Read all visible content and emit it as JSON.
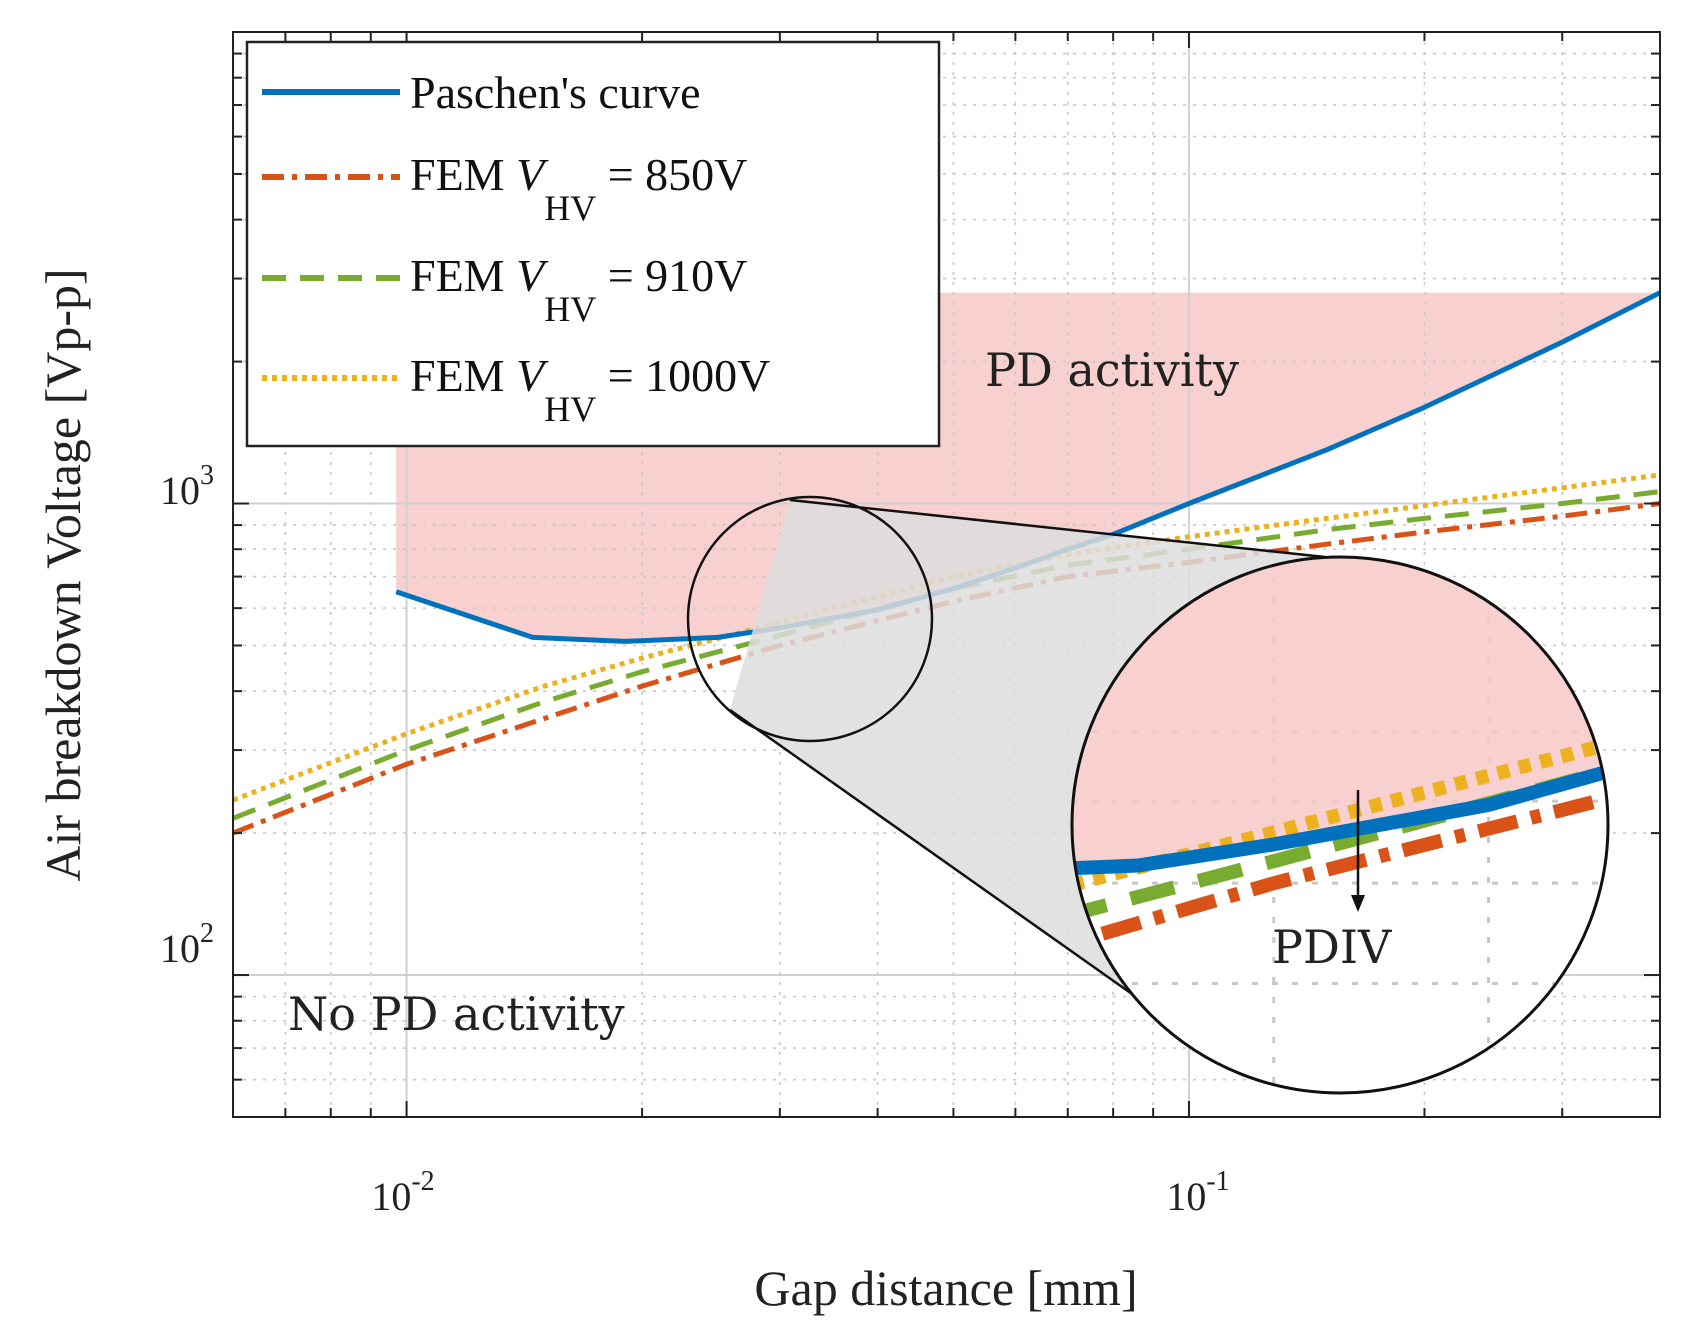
{
  "chart_data": {
    "type": "line",
    "xscale": "log",
    "yscale": "log",
    "xlim": [
      0.006,
      0.4
    ],
    "ylim": [
      50,
      10000
    ],
    "xlabel": "Gap distance [mm]",
    "ylabel": "Air breakdown Voltage [Vp-p]",
    "grid": true,
    "x_ticks": [
      {
        "value": 0.01,
        "base": "10",
        "exp": "-2"
      },
      {
        "value": 0.1,
        "base": "10",
        "exp": "-1"
      }
    ],
    "y_ticks": [
      {
        "value": 100,
        "base": "10",
        "exp": "2"
      },
      {
        "value": 1000,
        "base": "10",
        "exp": "3"
      }
    ],
    "series": [
      {
        "name": "Paschen's curve",
        "color": "#0072BD",
        "dash": "solid",
        "x": [
          0.0097,
          0.0145,
          0.019,
          0.025,
          0.03,
          0.04,
          0.05,
          0.06,
          0.07,
          0.08,
          0.1,
          0.15,
          0.2,
          0.3,
          0.4
        ],
        "y": [
          650,
          520,
          510,
          520,
          545,
          595,
          660,
          730,
          800,
          860,
          1000,
          1300,
          1600,
          2200,
          2800
        ]
      },
      {
        "name": "FEM V_HV = 850V",
        "color": "#D95319",
        "dash": "dashdot",
        "x": [
          0.006,
          0.01,
          0.015,
          0.02,
          0.03,
          0.05,
          0.07,
          0.1,
          0.15,
          0.2,
          0.3,
          0.4
        ],
        "y": [
          200,
          280,
          350,
          410,
          500,
          620,
          700,
          750,
          820,
          870,
          940,
          1000
        ]
      },
      {
        "name": "FEM V_HV = 910V",
        "color": "#77AC30",
        "dash": "dashed",
        "x": [
          0.006,
          0.01,
          0.015,
          0.02,
          0.03,
          0.05,
          0.07,
          0.1,
          0.15,
          0.2,
          0.3,
          0.4
        ],
        "y": [
          215,
          300,
          380,
          440,
          525,
          660,
          740,
          800,
          880,
          930,
          1000,
          1060
        ]
      },
      {
        "name": "FEM V_HV = 1000V",
        "color": "#EDB120",
        "dash": "dotted",
        "x": [
          0.006,
          0.01,
          0.015,
          0.02,
          0.03,
          0.05,
          0.07,
          0.1,
          0.15,
          0.2,
          0.3,
          0.4
        ],
        "y": [
          235,
          325,
          410,
          470,
          560,
          700,
          780,
          850,
          930,
          990,
          1080,
          1150
        ]
      }
    ],
    "regions": [
      {
        "name": "PD activity region",
        "color": "#F8C8C8",
        "upper_bound": [
          [
            0.0097,
            2800
          ],
          [
            0.4,
            2800
          ]
        ]
      }
    ],
    "legend": {
      "position": "top-left",
      "entries": [
        {
          "label": "Paschen's curve",
          "prefix": "",
          "var": "",
          "sub": "",
          "suffix": ""
        },
        {
          "label": "",
          "prefix": "FEM ",
          "var": "V",
          "sub": "HV",
          "suffix": " = 850V"
        },
        {
          "label": "",
          "prefix": "FEM ",
          "var": "V",
          "sub": "HV",
          "suffix": " = 910V"
        },
        {
          "label": "",
          "prefix": "FEM ",
          "var": "V",
          "sub": "HV",
          "suffix": " = 1000V"
        }
      ]
    },
    "annotations": {
      "pd_activity": "PD activity",
      "no_pd_activity": "No PD activity",
      "pdiv": "PDIV"
    }
  }
}
